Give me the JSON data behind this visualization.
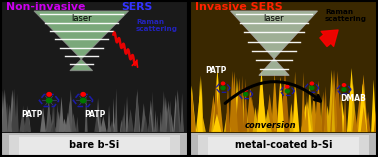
{
  "left_title_1": "Non-invasive ",
  "left_title_1_color": "#cc00ee",
  "left_title_2": "SERS",
  "left_title_2_color": "#3333ff",
  "left_label": "bare b-Si",
  "left_bg": "#1a1a1a",
  "left_spike_color": "#444444",
  "left_spike_color2": "#383838",
  "right_title": "Invasive SERS",
  "right_title_color": "#ff2200",
  "right_label": "metal-coated b-Si",
  "right_bg": "#3a2800",
  "right_spike_colors": [
    "#cc8800",
    "#ddaa00",
    "#bb7700",
    "#ffcc00",
    "#aa6600"
  ],
  "raman_color_left": "#2222bb",
  "raman_color_right": "#000000",
  "label_bg": "#c8c8c8",
  "label_color": "#000000",
  "laser_fill": "#90c890",
  "laser_fill_right": "#b0c8b0",
  "white": "#ffffff",
  "red": "#ff0000",
  "patp_ring": "#1a1aaa",
  "patp_fill": "#007700",
  "conversion_color": "#000000",
  "figsize": [
    3.78,
    1.57
  ],
  "dpi": 100
}
